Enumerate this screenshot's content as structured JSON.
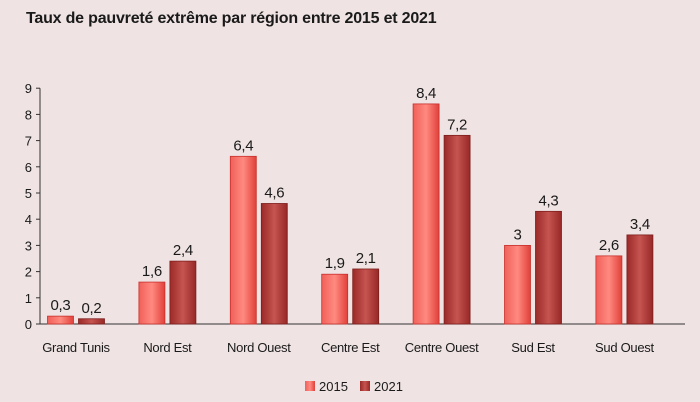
{
  "chart_data": {
    "type": "bar",
    "title": "Taux de pauvreté extrême par région entre 2015 et 2021",
    "xlabel": "",
    "ylabel": "",
    "ylim": [
      0,
      9
    ],
    "yticks": [
      "0",
      "1",
      "2",
      "3",
      "4",
      "5",
      "6",
      "7",
      "8",
      "9"
    ],
    "categories": [
      "Grand Tunis",
      "Nord Est",
      "Nord Ouest",
      "Centre Est",
      "Centre Ouest",
      "Sud Est",
      "Sud Ouest"
    ],
    "series": [
      {
        "name": "2015",
        "color": "#e8433f",
        "values": [
          0.3,
          1.6,
          6.4,
          1.9,
          8.4,
          3,
          2.6
        ],
        "labels": [
          "0,3",
          "1,6",
          "6,4",
          "1,9",
          "8,4",
          "3",
          "2,6"
        ]
      },
      {
        "name": "2021",
        "color": "#a8312f",
        "values": [
          0.2,
          2.4,
          4.6,
          2.1,
          7.2,
          4.3,
          3.4
        ],
        "labels": [
          "0,2",
          "2,4",
          "4,6",
          "2,1",
          "7,2",
          "4,3",
          "3,4"
        ]
      }
    ],
    "legend_position": "bottom-center",
    "grid": false
  }
}
